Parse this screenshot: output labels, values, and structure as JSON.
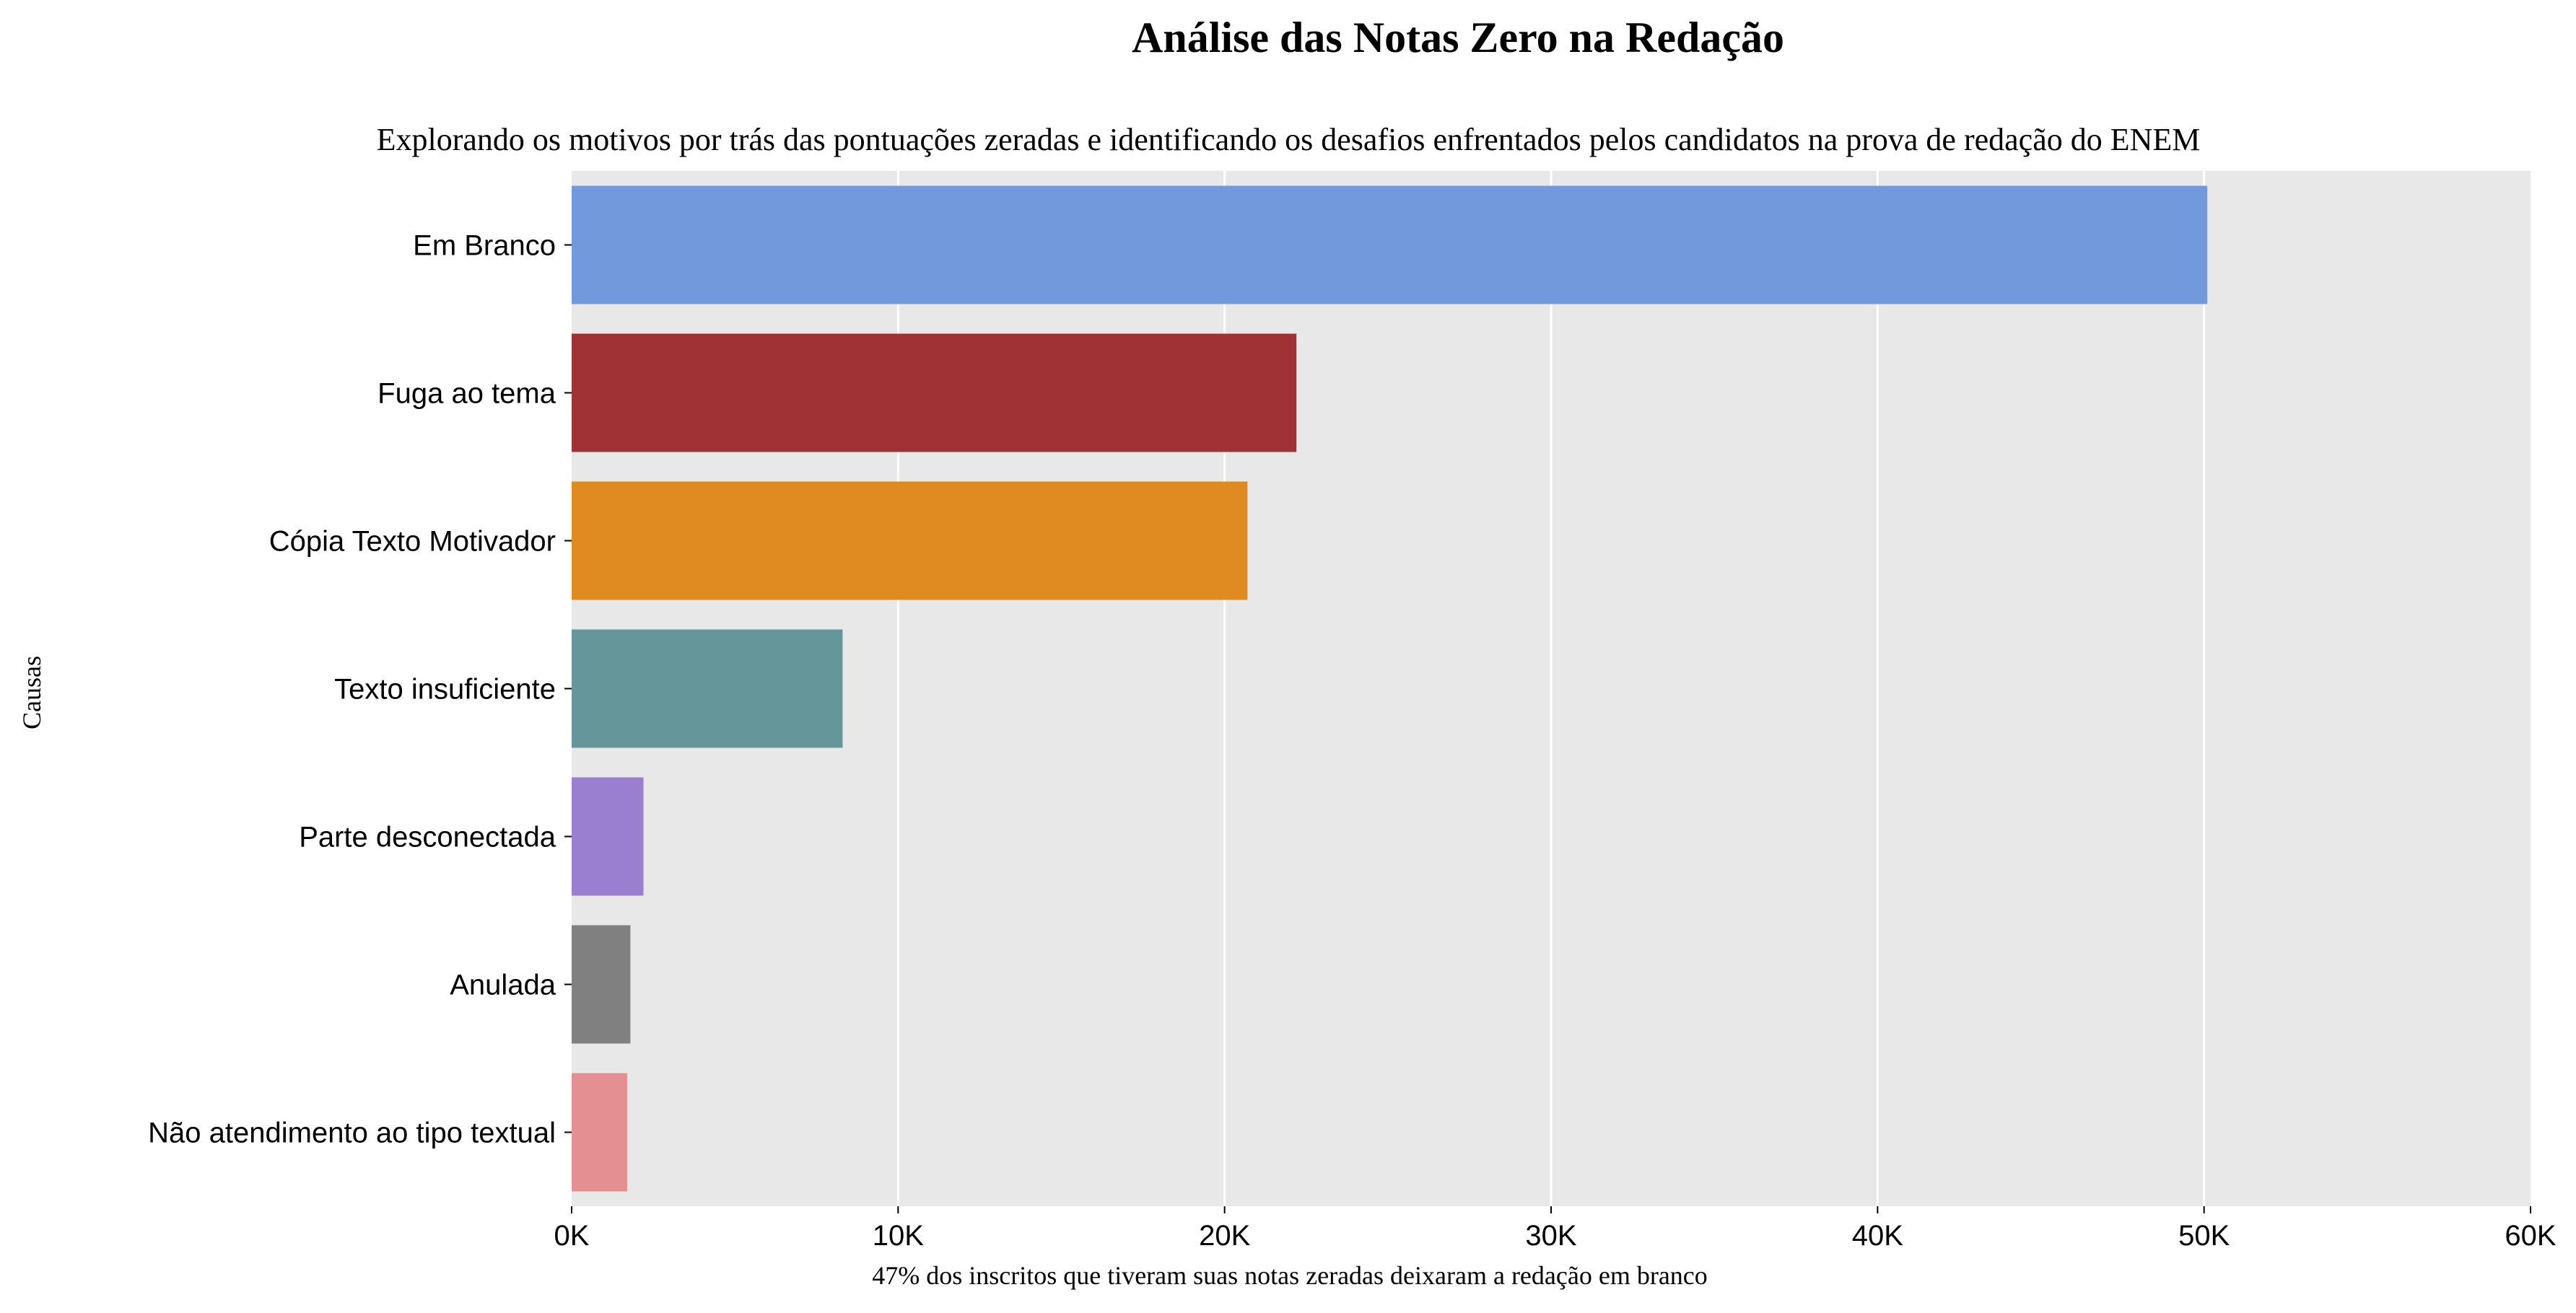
{
  "chart_data": {
    "type": "bar",
    "orientation": "horizontal",
    "title": "Análise das Notas Zero na Redação",
    "subtitle": "Explorando os motivos por trás das pontuações zeradas e identificando os desafios enfrentados pelos candidatos na prova de redação do ENEM",
    "ylabel": "Causas",
    "xlabel": "47% dos inscritos que tiveram suas notas zeradas deixaram a redação em branco",
    "categories": [
      "Em Branco",
      "Fuga ao tema",
      "Cópia Texto Motivador",
      "Texto insuficiente",
      "Parte desconectada",
      "Anulada",
      "Não atendimento ao tipo textual"
    ],
    "values": [
      50100,
      22200,
      20700,
      8300,
      2200,
      1800,
      1700
    ],
    "colors": [
      "#7299db",
      "#a03235",
      "#e08a22",
      "#65969a",
      "#9a7fd0",
      "#808080",
      "#e48f91"
    ],
    "xlim": [
      0,
      60000
    ],
    "xticks": [
      0,
      10000,
      20000,
      30000,
      40000,
      50000,
      60000
    ],
    "xtick_labels": [
      "0K",
      "10K",
      "20K",
      "30K",
      "40K",
      "50K",
      "60K"
    ],
    "grid": "vertical",
    "plot_background": "#e8e8e8",
    "grid_color": "#ffffff"
  }
}
